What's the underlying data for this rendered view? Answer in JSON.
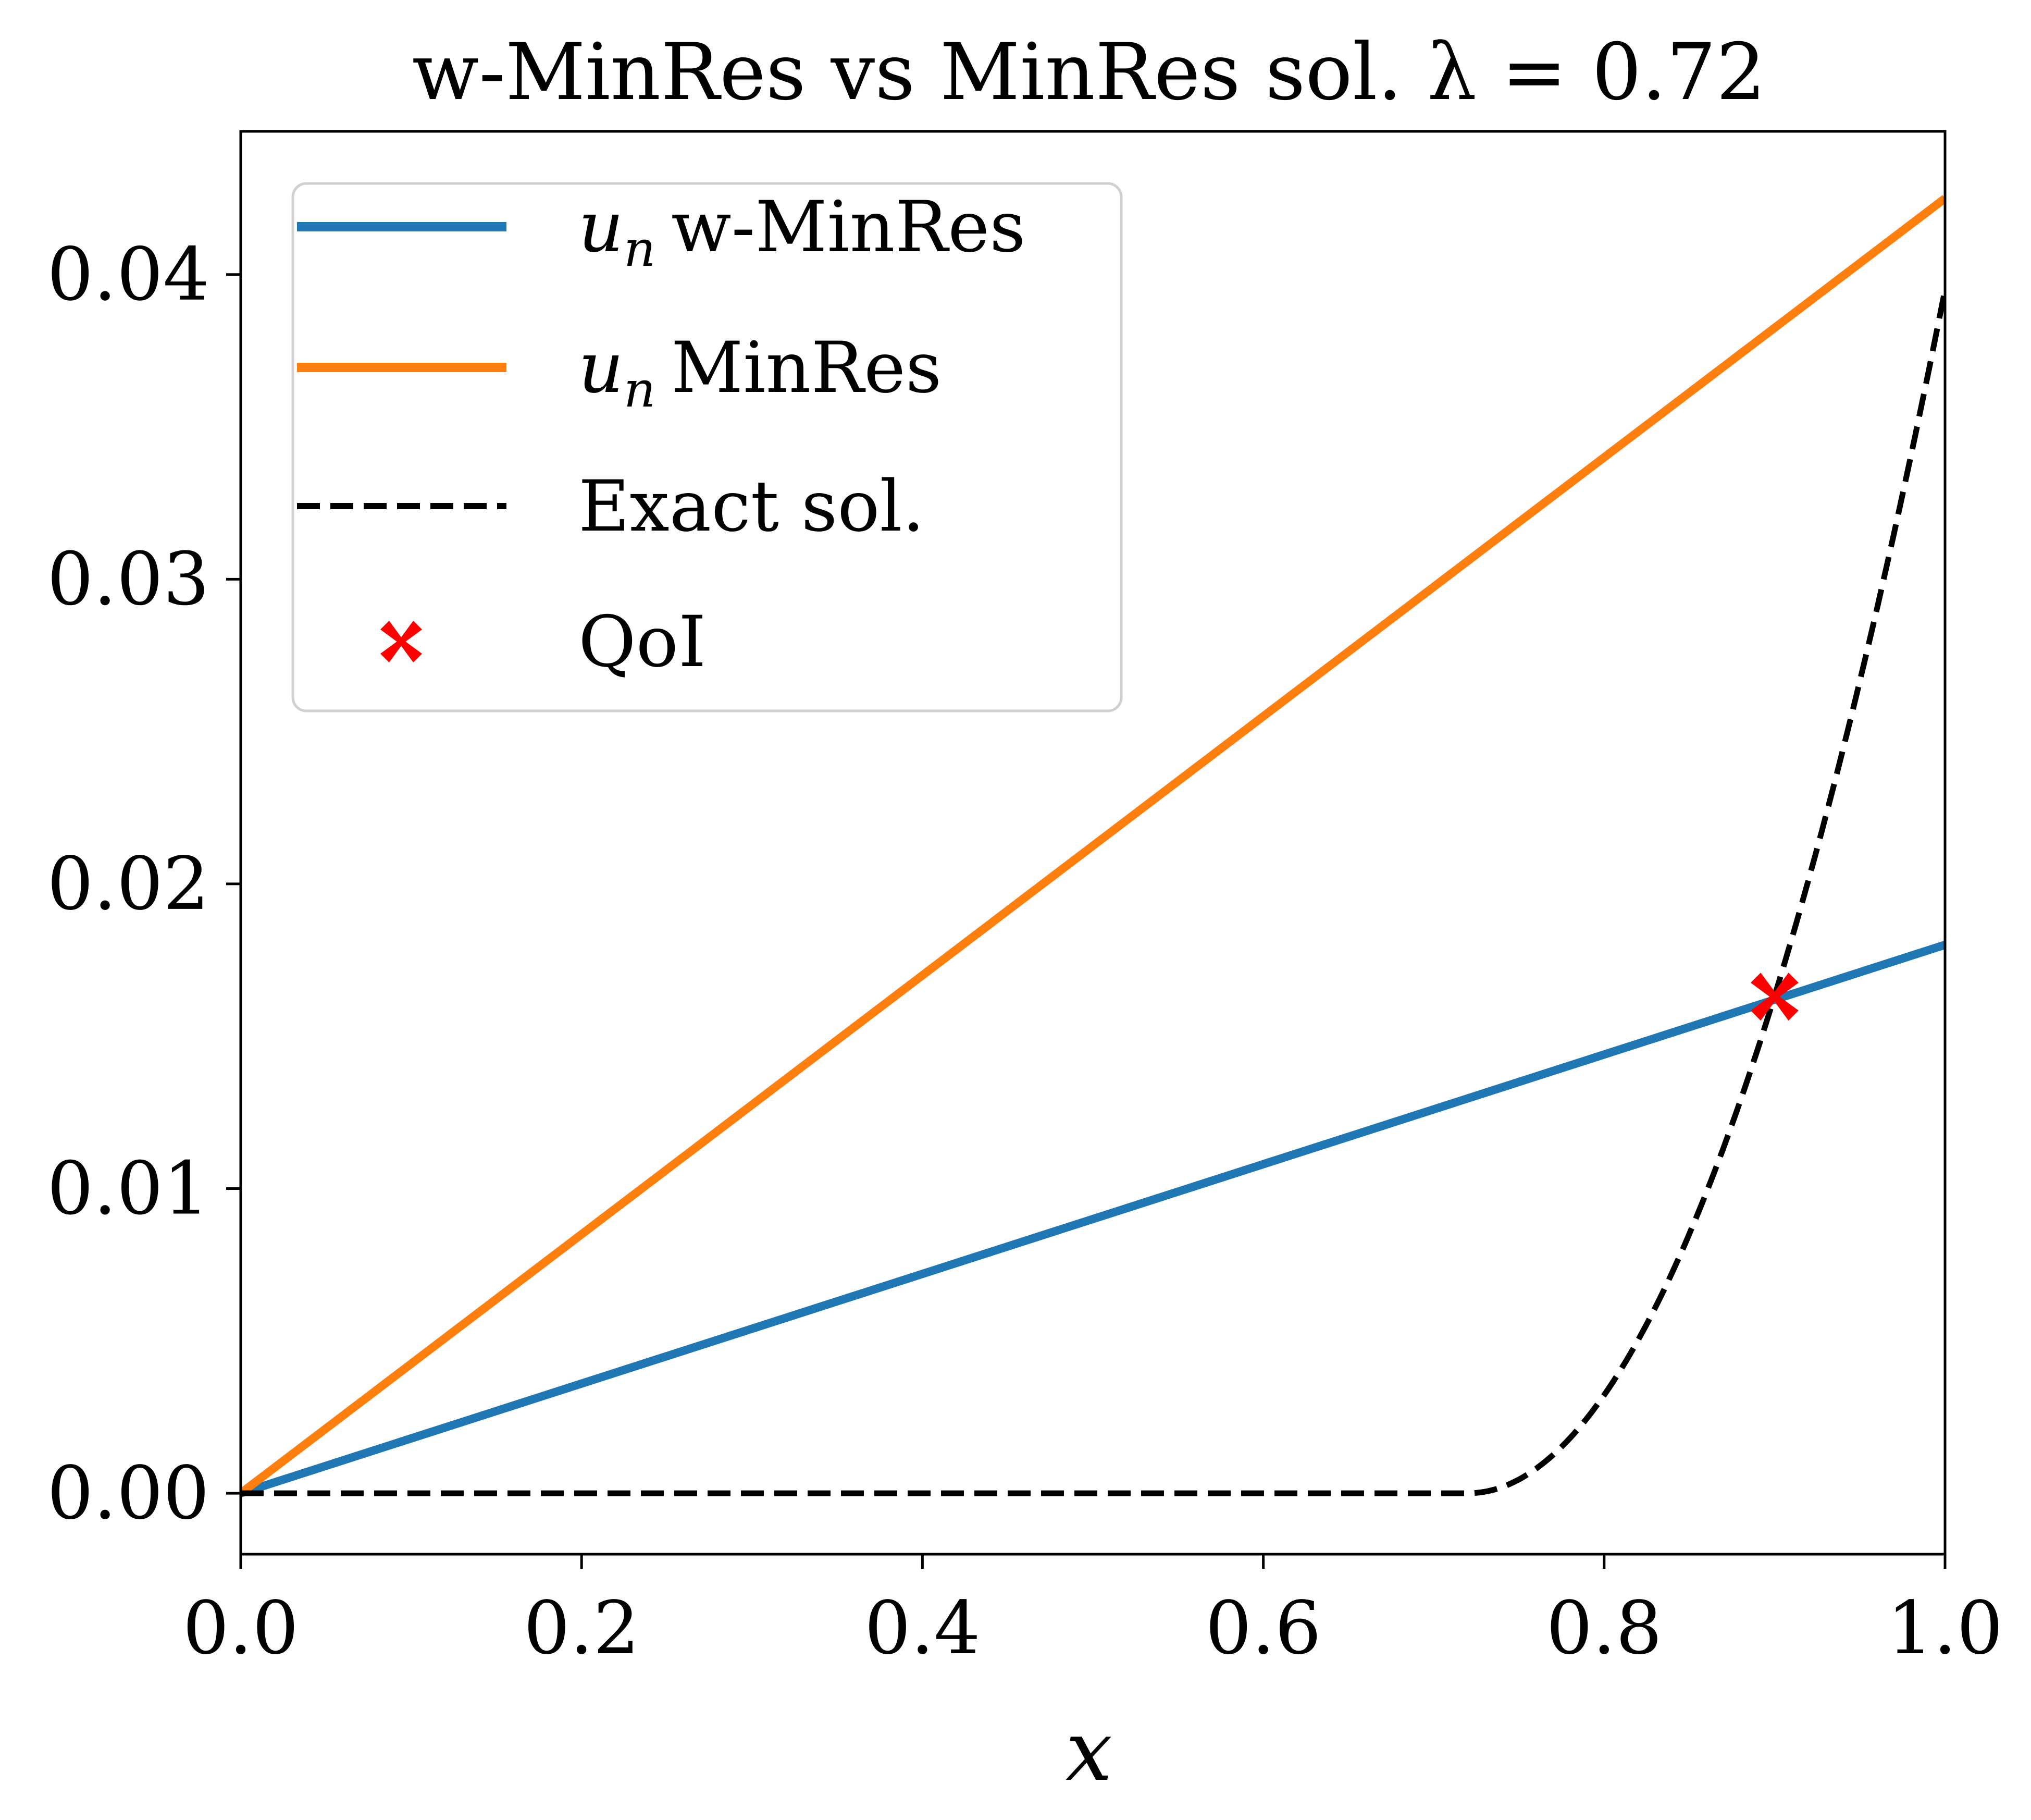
{
  "chart_data": {
    "type": "line",
    "title": "w-MinRes vs MinRes sol. λ = 0.72",
    "xlabel": "x",
    "ylabel": "",
    "xlim": [
      0.0,
      1.0
    ],
    "ylim": [
      -0.002,
      0.0447
    ],
    "x_ticks": [
      "0.0",
      "0.2",
      "0.4",
      "0.6",
      "0.8",
      "1.0"
    ],
    "y_ticks": [
      "0.00",
      "0.01",
      "0.02",
      "0.03",
      "0.04"
    ],
    "grid": false,
    "legend": {
      "placement": "top-left",
      "entries": [
        {
          "main": "u",
          "sub": "n",
          "text": "w-MinRes"
        },
        {
          "main": "u",
          "sub": "n",
          "text": "MinRes"
        },
        {
          "main": "",
          "sub": "",
          "text": "Exact sol."
        },
        {
          "main": "",
          "sub": "",
          "text": "QoI"
        }
      ]
    },
    "lambda": 0.72,
    "series": [
      {
        "color": "#1f77b4",
        "style": "solid",
        "x": [
          0.0,
          1.0
        ],
        "y": [
          0.0,
          0.018
        ]
      },
      {
        "color": "#ff7f0e",
        "style": "solid",
        "x": [
          0.0,
          1.0
        ],
        "y": [
          0.0,
          0.0425
        ]
      },
      {
        "color": "#000000",
        "style": "dashed",
        "formula": "y = 0.0395 * ((x - 0.72) / 0.28)^2 for x > 0.72, else 0"
      }
    ],
    "points": [
      {
        "color": "#ff0000",
        "marker": "x",
        "x": 0.9,
        "y": 0.0163
      }
    ]
  }
}
